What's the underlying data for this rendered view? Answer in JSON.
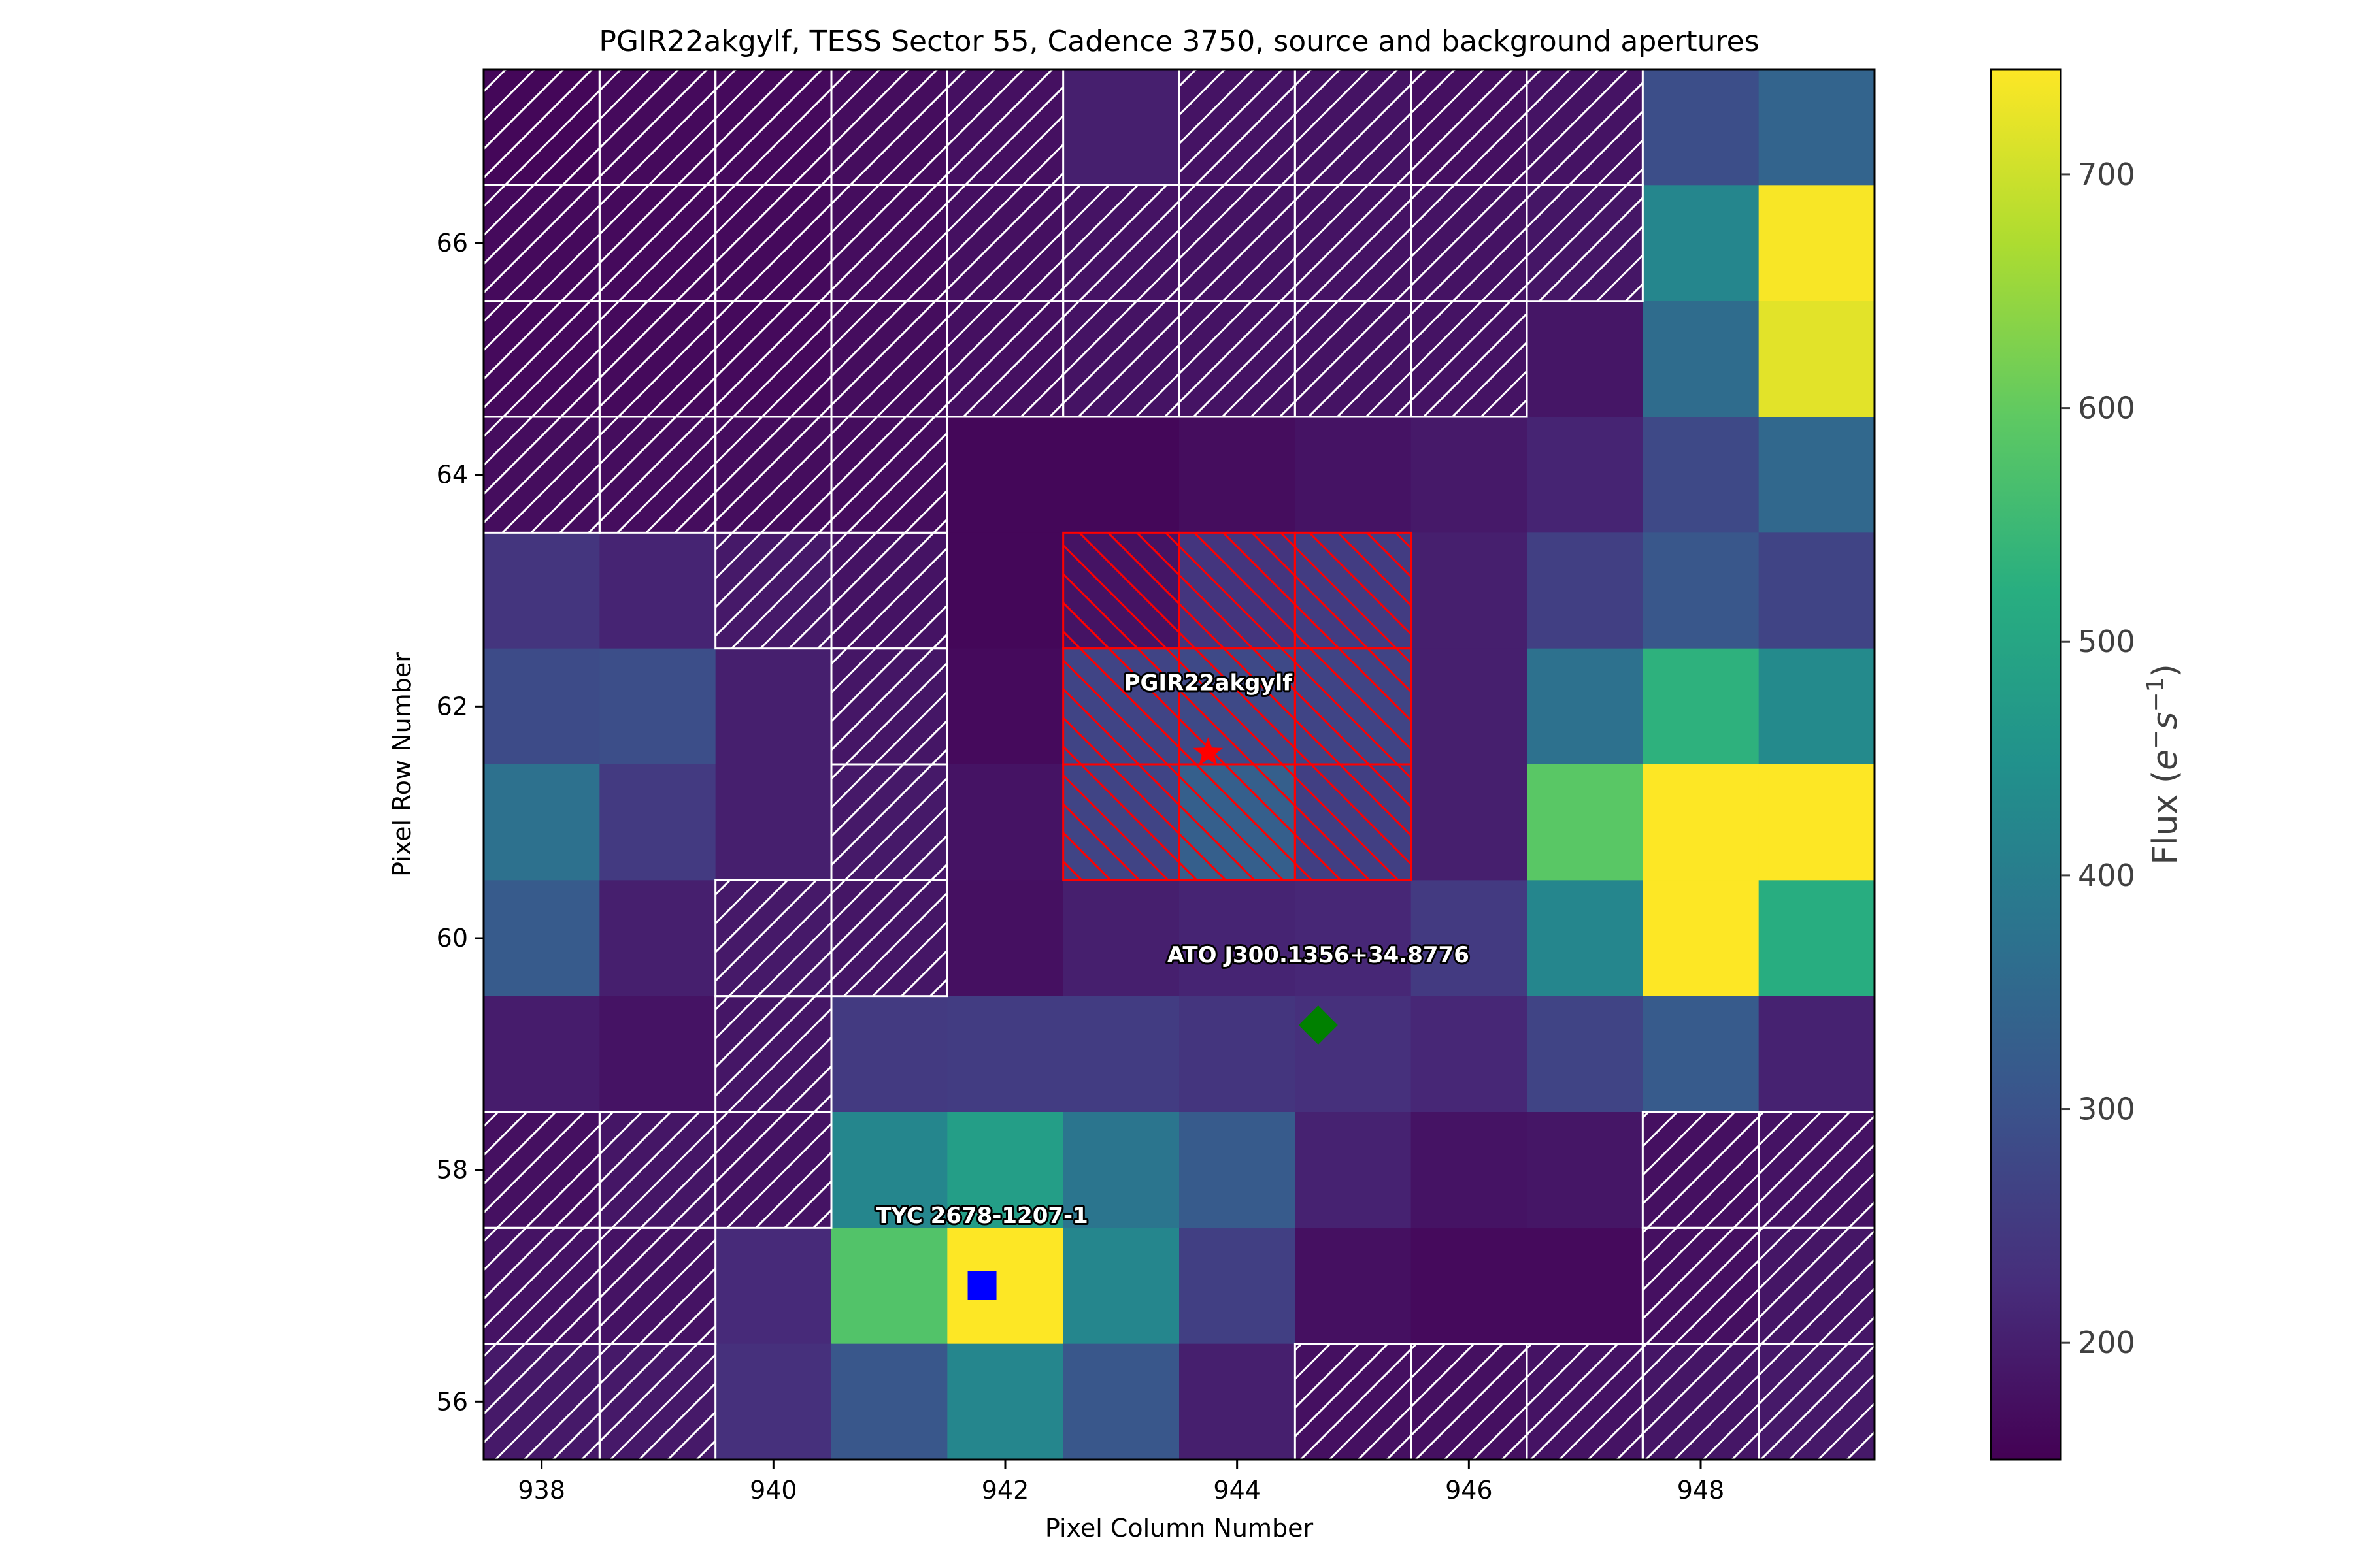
{
  "chart_data": {
    "type": "heatmap",
    "title": "PGIR22akgylf, TESS Sector 55, Cadence 3750, source and background apertures",
    "xlabel": "Pixel Column Number",
    "ylabel": "Pixel Row Number",
    "xlim": [
      937.5,
      949.5
    ],
    "ylim": [
      55.5,
      67.5
    ],
    "x_ticks": [
      "938",
      "940",
      "942",
      "944",
      "946",
      "948"
    ],
    "x_tick_values": [
      938,
      940,
      942,
      944,
      946,
      948
    ],
    "y_ticks": [
      "56",
      "58",
      "60",
      "62",
      "64",
      "66"
    ],
    "y_tick_values": [
      56,
      58,
      60,
      62,
      64,
      66
    ],
    "columns": [
      938,
      939,
      940,
      941,
      942,
      943,
      944,
      945,
      946,
      947,
      948,
      949
    ],
    "rows": [
      67,
      66,
      65,
      64,
      63,
      62,
      61,
      60,
      59,
      58,
      57,
      56
    ],
    "values": [
      [
        160,
        165,
        165,
        170,
        175,
        200,
        180,
        180,
        175,
        180,
        290,
        340
      ],
      [
        165,
        165,
        165,
        170,
        175,
        180,
        180,
        180,
        180,
        185,
        420,
        740
      ],
      [
        165,
        165,
        165,
        170,
        175,
        180,
        180,
        180,
        180,
        185,
        360,
        720
      ],
      [
        170,
        170,
        170,
        170,
        160,
        160,
        170,
        180,
        190,
        210,
        280,
        350
      ],
      [
        240,
        210,
        190,
        180,
        160,
        180,
        240,
        255,
        200,
        260,
        310,
        270
      ],
      [
        285,
        290,
        200,
        185,
        165,
        270,
        280,
        270,
        200,
        370,
        530,
        430
      ],
      [
        370,
        250,
        200,
        190,
        180,
        270,
        330,
        260,
        200,
        590,
        745,
        745
      ],
      [
        320,
        200,
        190,
        185,
        175,
        200,
        210,
        215,
        250,
        420,
        745,
        520
      ],
      [
        195,
        180,
        185,
        250,
        255,
        255,
        240,
        230,
        215,
        270,
        320,
        205
      ],
      [
        175,
        185,
        180,
        420,
        480,
        380,
        320,
        205,
        180,
        185,
        175,
        180
      ],
      [
        180,
        180,
        220,
        580,
        745,
        420,
        260,
        175,
        165,
        165,
        175,
        185
      ],
      [
        190,
        190,
        230,
        310,
        420,
        310,
        200,
        175,
        175,
        180,
        185,
        190
      ]
    ],
    "background_mask": [
      [
        1,
        1,
        1,
        1,
        1,
        0,
        1,
        1,
        1,
        1,
        0,
        0
      ],
      [
        1,
        1,
        1,
        1,
        1,
        1,
        1,
        1,
        1,
        1,
        0,
        0
      ],
      [
        1,
        1,
        1,
        1,
        1,
        1,
        1,
        1,
        1,
        0,
        0,
        0
      ],
      [
        1,
        1,
        1,
        1,
        0,
        0,
        0,
        0,
        0,
        0,
        0,
        0
      ],
      [
        0,
        0,
        1,
        1,
        0,
        0,
        0,
        0,
        0,
        0,
        0,
        0
      ],
      [
        0,
        0,
        0,
        1,
        0,
        0,
        0,
        0,
        0,
        0,
        0,
        0
      ],
      [
        0,
        0,
        0,
        1,
        0,
        0,
        0,
        0,
        0,
        0,
        0,
        0
      ],
      [
        0,
        0,
        1,
        1,
        0,
        0,
        0,
        0,
        0,
        0,
        0,
        0
      ],
      [
        0,
        0,
        1,
        0,
        0,
        0,
        0,
        0,
        0,
        0,
        0,
        0
      ],
      [
        1,
        1,
        1,
        0,
        0,
        0,
        0,
        0,
        0,
        0,
        1,
        1
      ],
      [
        1,
        1,
        0,
        0,
        0,
        0,
        0,
        0,
        0,
        0,
        1,
        1
      ],
      [
        1,
        1,
        0,
        0,
        0,
        0,
        0,
        1,
        1,
        1,
        1,
        1
      ]
    ],
    "source_aperture": {
      "columns": [
        943,
        944,
        945
      ],
      "rows": [
        61,
        62,
        63
      ],
      "color": "#ff0000"
    },
    "markers": [
      {
        "label": "PGIR22akgylf",
        "x": 943.75,
        "y": 61.6,
        "shape": "star",
        "color": "#ff0000"
      },
      {
        "label": "ATO J300.1356+34.8776",
        "x": 944.7,
        "y": 59.25,
        "shape": "diamond",
        "color": "#008000"
      },
      {
        "label": "TYC 2678-1207-1",
        "x": 941.8,
        "y": 57.0,
        "shape": "square",
        "color": "#0000ff"
      }
    ],
    "colorbar": {
      "label": "Flux (e⁻s⁻¹)",
      "label_main": "Flux (",
      "label_e": "e",
      "label_sup1": "−",
      "label_s": "s",
      "label_sup2": "−1",
      "label_close": ")",
      "vmin": 150,
      "vmax": 745,
      "ticks": [
        "200",
        "300",
        "400",
        "500",
        "600",
        "700"
      ],
      "tick_values": [
        200,
        300,
        400,
        500,
        600,
        700
      ],
      "colormap": "viridis"
    },
    "grid": false
  }
}
